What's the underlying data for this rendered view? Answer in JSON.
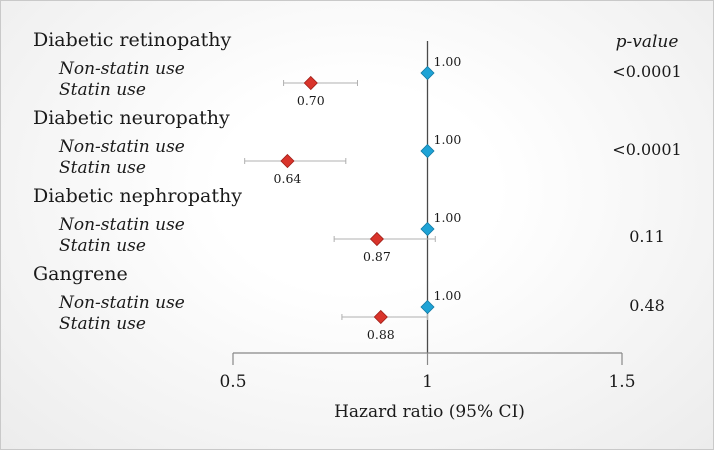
{
  "chart_data": {
    "type": "forest",
    "xlabel": "Hazard ratio (95% CI)",
    "xlim": [
      0.5,
      1.5
    ],
    "ticks": [
      {
        "value": 0.5,
        "label": "0.5"
      },
      {
        "value": 1,
        "label": "1"
      },
      {
        "value": 1.5,
        "label": "1.5"
      }
    ],
    "reference_line": 1,
    "pvalue_header": "p-value",
    "colors": {
      "reference": "#1ea3d6",
      "statin": "#d9342b",
      "axis": "#888888",
      "ci": "#b0b0b0"
    },
    "groups": [
      {
        "name": "Diabetic retinopathy",
        "p_value": "<0.0001",
        "rows": [
          {
            "label": "Non-statin use",
            "hr": 1.0,
            "hr_label": "1.00",
            "ci": null,
            "kind": "reference"
          },
          {
            "label": "Statin use",
            "hr": 0.7,
            "hr_label": "0.70",
            "ci": [
              0.63,
              0.82
            ],
            "kind": "statin"
          }
        ]
      },
      {
        "name": "Diabetic neuropathy",
        "p_value": "<0.0001",
        "rows": [
          {
            "label": "Non-statin use",
            "hr": 1.0,
            "hr_label": "1.00",
            "ci": null,
            "kind": "reference"
          },
          {
            "label": "Statin use",
            "hr": 0.64,
            "hr_label": "0.64",
            "ci": [
              0.53,
              0.79
            ],
            "kind": "statin"
          }
        ]
      },
      {
        "name": "Diabetic nephropathy",
        "p_value": "0.11",
        "rows": [
          {
            "label": "Non-statin use",
            "hr": 1.0,
            "hr_label": "1.00",
            "ci": null,
            "kind": "reference"
          },
          {
            "label": "Statin use",
            "hr": 0.87,
            "hr_label": "0.87",
            "ci": [
              0.76,
              1.02
            ],
            "kind": "statin"
          }
        ]
      },
      {
        "name": "Gangrene",
        "p_value": "0.48",
        "rows": [
          {
            "label": "Non-statin use",
            "hr": 1.0,
            "hr_label": "1.00",
            "ci": null,
            "kind": "reference"
          },
          {
            "label": "Statin use",
            "hr": 0.88,
            "hr_label": "0.88",
            "ci": [
              0.78,
              1.0
            ],
            "kind": "statin"
          }
        ]
      }
    ]
  }
}
